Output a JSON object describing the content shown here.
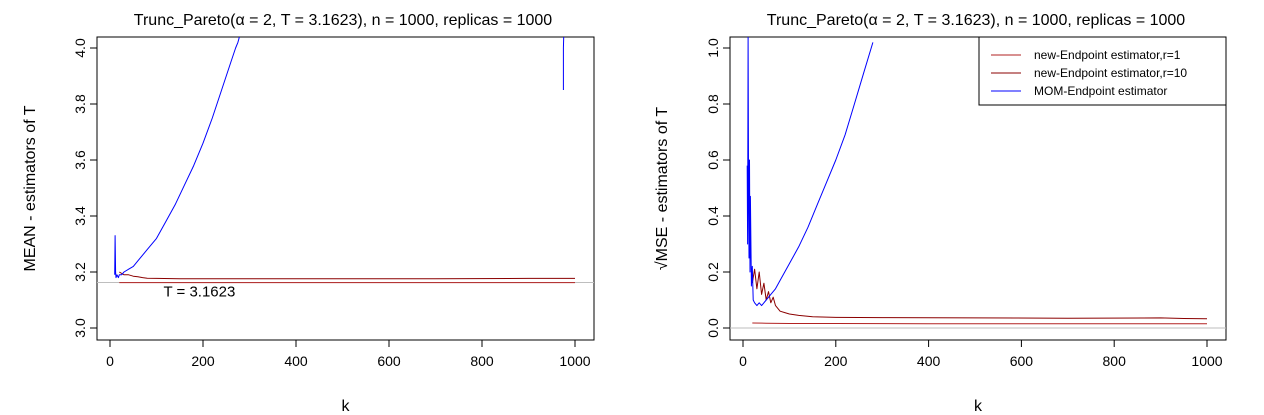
{
  "chart_data": [
    {
      "type": "line",
      "title": "Trunc_Pareto(α = 2, T = 3.1623), n = 1000, replicas = 1000",
      "xlabel": "k",
      "ylabel": "MEAN - estimators of T",
      "xlim": [
        0,
        1000
      ],
      "ylim": [
        3.0,
        4.0
      ],
      "xticks": [
        "0",
        "200",
        "400",
        "600",
        "800",
        "1000"
      ],
      "yticks": [
        "3.0",
        "3.2",
        "3.4",
        "3.6",
        "3.8",
        "4.0"
      ],
      "reference_line": {
        "y": 3.1623,
        "label": "T = 3.1623",
        "color": "#bebebe"
      },
      "series": [
        {
          "color": "#b22222",
          "x": [
            20,
            50,
            100,
            200,
            400,
            600,
            800,
            1000
          ],
          "y": [
            3.162,
            3.162,
            3.162,
            3.162,
            3.162,
            3.162,
            3.162,
            3.162
          ]
        },
        {
          "color": "#8b0000",
          "x": [
            20,
            30,
            40,
            50,
            60,
            70,
            80,
            100,
            150,
            200,
            300,
            500,
            700,
            900,
            1000
          ],
          "y": [
            3.2,
            3.19,
            3.19,
            3.185,
            3.183,
            3.18,
            3.178,
            3.177,
            3.176,
            3.176,
            3.176,
            3.176,
            3.176,
            3.177,
            3.177
          ]
        },
        {
          "color": "#0000ff",
          "x": [
            10,
            11,
            12,
            13,
            15,
            18,
            20,
            25,
            30,
            40,
            50,
            60,
            80,
            100,
            120,
            140,
            160,
            180,
            200,
            220,
            240,
            260,
            270,
            275,
            280
          ],
          "y": [
            3.19,
            3.33,
            3.2,
            3.18,
            3.19,
            3.18,
            3.19,
            3.19,
            3.2,
            3.21,
            3.22,
            3.24,
            3.28,
            3.32,
            3.38,
            3.44,
            3.51,
            3.58,
            3.66,
            3.75,
            3.85,
            3.95,
            4.0,
            4.02,
            4.05
          ]
        },
        {
          "color": "#0000ff",
          "x": [
            975,
            975,
            976,
            978
          ],
          "y": [
            3.85,
            4.0,
            4.05,
            4.05
          ]
        }
      ]
    },
    {
      "type": "line",
      "title": "Trunc_Pareto(α = 2, T = 3.1623), n = 1000, replicas = 1000",
      "xlabel": "k",
      "ylabel": "√MSE - estimators of T",
      "xlim": [
        0,
        1000
      ],
      "ylim": [
        0.0,
        1.0
      ],
      "xticks": [
        "0",
        "200",
        "400",
        "600",
        "800",
        "1000"
      ],
      "yticks": [
        "0.0",
        "0.2",
        "0.4",
        "0.6",
        "0.8",
        "1.0"
      ],
      "reference_line": {
        "y": 0.0,
        "color": "#bebebe"
      },
      "legend": {
        "position": "top-right",
        "entries": [
          {
            "label": "new-Endpoint estimator,r=1",
            "color": "#b22222"
          },
          {
            "label": "new-Endpoint estimator,r=10",
            "color": "#8b0000"
          },
          {
            "label": "MOM-Endpoint estimator",
            "color": "#0000ff"
          }
        ]
      },
      "series": [
        {
          "color": "#b22222",
          "x": [
            20,
            50,
            100,
            200,
            400,
            600,
            800,
            1000
          ],
          "y": [
            0.018,
            0.017,
            0.016,
            0.016,
            0.015,
            0.015,
            0.015,
            0.015
          ]
        },
        {
          "color": "#8b0000",
          "x": [
            20,
            25,
            30,
            35,
            40,
            45,
            50,
            55,
            60,
            65,
            70,
            80,
            90,
            100,
            120,
            150,
            200,
            300,
            500,
            700,
            900,
            950,
            1000
          ],
          "y": [
            0.16,
            0.21,
            0.14,
            0.2,
            0.12,
            0.16,
            0.1,
            0.13,
            0.09,
            0.11,
            0.08,
            0.06,
            0.055,
            0.05,
            0.045,
            0.04,
            0.038,
            0.037,
            0.036,
            0.035,
            0.036,
            0.034,
            0.033
          ]
        },
        {
          "color": "#0000ff",
          "x": [
            9,
            10,
            11,
            12,
            13,
            14,
            15,
            16,
            18,
            20,
            22,
            25,
            30,
            35,
            40,
            50,
            60,
            70,
            80,
            100,
            120,
            140,
            160,
            180,
            200,
            220,
            240,
            260,
            280
          ],
          "y": [
            0.58,
            0.3,
            1.05,
            0.45,
            0.25,
            0.6,
            0.2,
            0.47,
            0.15,
            0.22,
            0.1,
            0.09,
            0.08,
            0.09,
            0.08,
            0.1,
            0.12,
            0.14,
            0.17,
            0.23,
            0.29,
            0.36,
            0.44,
            0.52,
            0.6,
            0.69,
            0.8,
            0.91,
            1.02
          ]
        }
      ]
    }
  ]
}
